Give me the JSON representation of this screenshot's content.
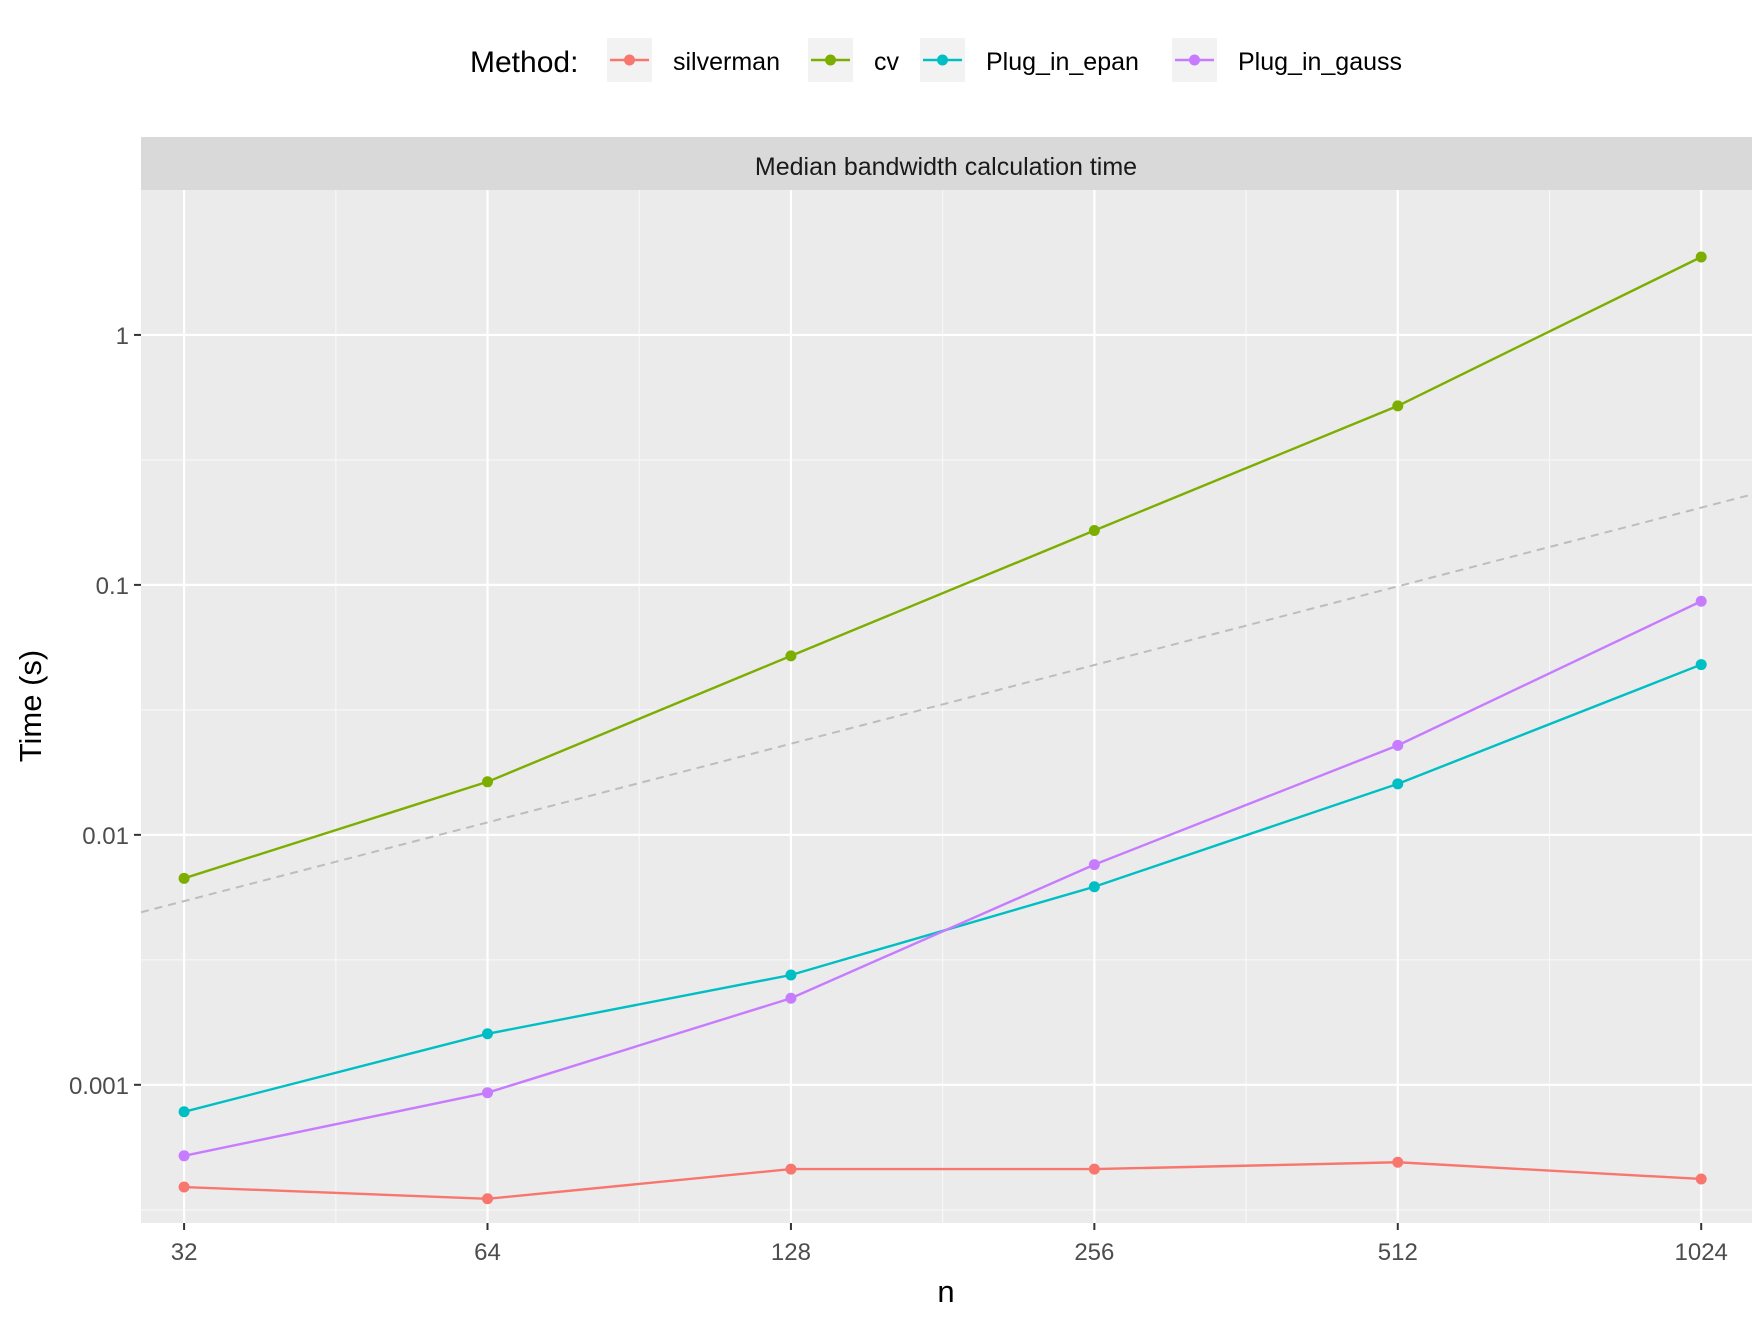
{
  "chart_data": {
    "type": "line",
    "facet_title": "Median bandwidth calculation time",
    "xlabel": "n",
    "ylabel": "Time (s)",
    "x_scale": "log2",
    "y_scale": "log10",
    "x_ticks": [
      32,
      64,
      128,
      256,
      512,
      1024
    ],
    "x_tick_labels": [
      "32",
      "64",
      "128",
      "256",
      "512",
      "1024"
    ],
    "y_ticks": [
      0.001,
      0.01,
      0.1,
      1
    ],
    "y_tick_labels": [
      "0.001",
      "0.01",
      "0.1",
      "1"
    ],
    "xlim": [
      29,
      1150
    ],
    "ylim": [
      0.00028,
      3.8
    ],
    "grid": true,
    "legend": {
      "title": "Method:",
      "position": "top"
    },
    "x": [
      32,
      64,
      128,
      256,
      512,
      1024
    ],
    "series": [
      {
        "name": "silverman",
        "color": "#F8766D",
        "values": [
          0.00039,
          0.00035,
          0.00046,
          0.00046,
          0.00049,
          0.00042
        ]
      },
      {
        "name": "cv",
        "color": "#7CAE00",
        "values": [
          0.0067,
          0.0163,
          0.052,
          0.165,
          0.52,
          2.05
        ]
      },
      {
        "name": "Plug_in_epan",
        "color": "#00BFC4",
        "values": [
          0.00078,
          0.0016,
          0.00275,
          0.0062,
          0.016,
          0.048
        ]
      },
      {
        "name": "Plug_in_gauss",
        "color": "#C77CFF",
        "values": [
          0.00052,
          0.00093,
          0.00222,
          0.0076,
          0.0228,
          0.086
        ]
      }
    ],
    "reference_line": {
      "style": "dashed",
      "color": "#BDBDBD",
      "points": [
        [
          29,
          0.0049
        ],
        [
          1150,
          0.23
        ]
      ]
    }
  }
}
